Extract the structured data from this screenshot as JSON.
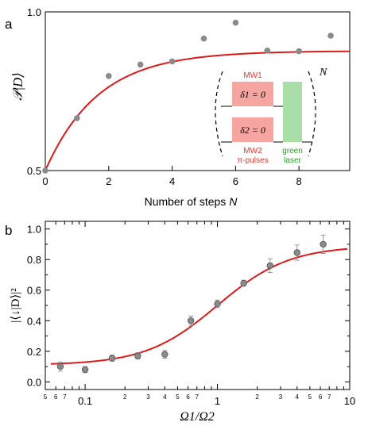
{
  "chart_data": [
    {
      "type": "scatter",
      "panel_label": "a",
      "xlabel": "Number of steps",
      "xlabel_var": "N",
      "ylabel": "𝒫|D⟩",
      "xlim": [
        0,
        9.6
      ],
      "ylim": [
        0.5,
        1.0
      ],
      "x_ticks": [
        "0",
        "2",
        "4",
        "6",
        "8"
      ],
      "y_ticks": [
        "0.5",
        "1.0"
      ],
      "points": [
        {
          "x": 0,
          "y": 0.5
        },
        {
          "x": 1,
          "y": 0.665
        },
        {
          "x": 2,
          "y": 0.798
        },
        {
          "x": 3,
          "y": 0.834
        },
        {
          "x": 4,
          "y": 0.844
        },
        {
          "x": 5,
          "y": 0.916
        },
        {
          "x": 6,
          "y": 0.966
        },
        {
          "x": 7,
          "y": 0.878
        },
        {
          "x": 8,
          "y": 0.876
        },
        {
          "x": 9,
          "y": 0.925
        }
      ],
      "fit_curve": {
        "color": "#dd1a1a",
        "form": "saturating exponential",
        "y0": 0.5,
        "y_inf": 0.877,
        "rate": 0.6
      },
      "point_color": "#8a8a8a",
      "inset": {
        "mw1_label": "MW1",
        "delta1_label": "δ1 = 0",
        "delta2_label": "δ2 = 0",
        "mw2_label": "MW2",
        "pi_pulses_label": "π-pulses",
        "green_label": "green",
        "laser_label": "laser",
        "repeat_label": "N",
        "mw_color": "#f6a5a0",
        "mw_text_color": "#e8352a",
        "laser_color": "#a9dea6",
        "laser_text_color": "#2e9b2e"
      }
    },
    {
      "type": "scatter",
      "panel_label": "b",
      "xlabel": "Ω1/Ω2",
      "ylabel": "|⟨↓|D⟩|²",
      "x_scale": "log",
      "xlim": [
        0.05,
        10
      ],
      "ylim": [
        -0.05,
        1.05
      ],
      "x_ticks": [
        "0.1",
        "1",
        "10"
      ],
      "x_minor_labels": [
        "5",
        "6",
        "7",
        "2",
        "3",
        "4",
        "5",
        "6",
        "7",
        "2",
        "3",
        "4",
        "5",
        "6",
        "7"
      ],
      "y_ticks": [
        "0.0",
        "0.2",
        "0.4",
        "0.6",
        "0.8",
        "1.0"
      ],
      "points": [
        {
          "x": 0.065,
          "y": 0.1,
          "err": 0.03
        },
        {
          "x": 0.1,
          "y": 0.08,
          "err": 0.02
        },
        {
          "x": 0.16,
          "y": 0.155,
          "err": 0.02
        },
        {
          "x": 0.25,
          "y": 0.17,
          "err": 0.02
        },
        {
          "x": 0.4,
          "y": 0.18,
          "err": 0.025
        },
        {
          "x": 0.63,
          "y": 0.4,
          "err": 0.03
        },
        {
          "x": 1.0,
          "y": 0.51,
          "err": 0.025
        },
        {
          "x": 1.58,
          "y": 0.645,
          "err": 0.02
        },
        {
          "x": 2.5,
          "y": 0.76,
          "err": 0.045
        },
        {
          "x": 4.0,
          "y": 0.845,
          "err": 0.05
        },
        {
          "x": 6.3,
          "y": 0.9,
          "err": 0.06
        }
      ],
      "fit_curve": {
        "color": "#dd1a1a",
        "form": "sigmoid in Ω1/Ω2",
        "low": 0.11,
        "high": 0.89
      },
      "point_color": "#8a8a8a"
    }
  ]
}
